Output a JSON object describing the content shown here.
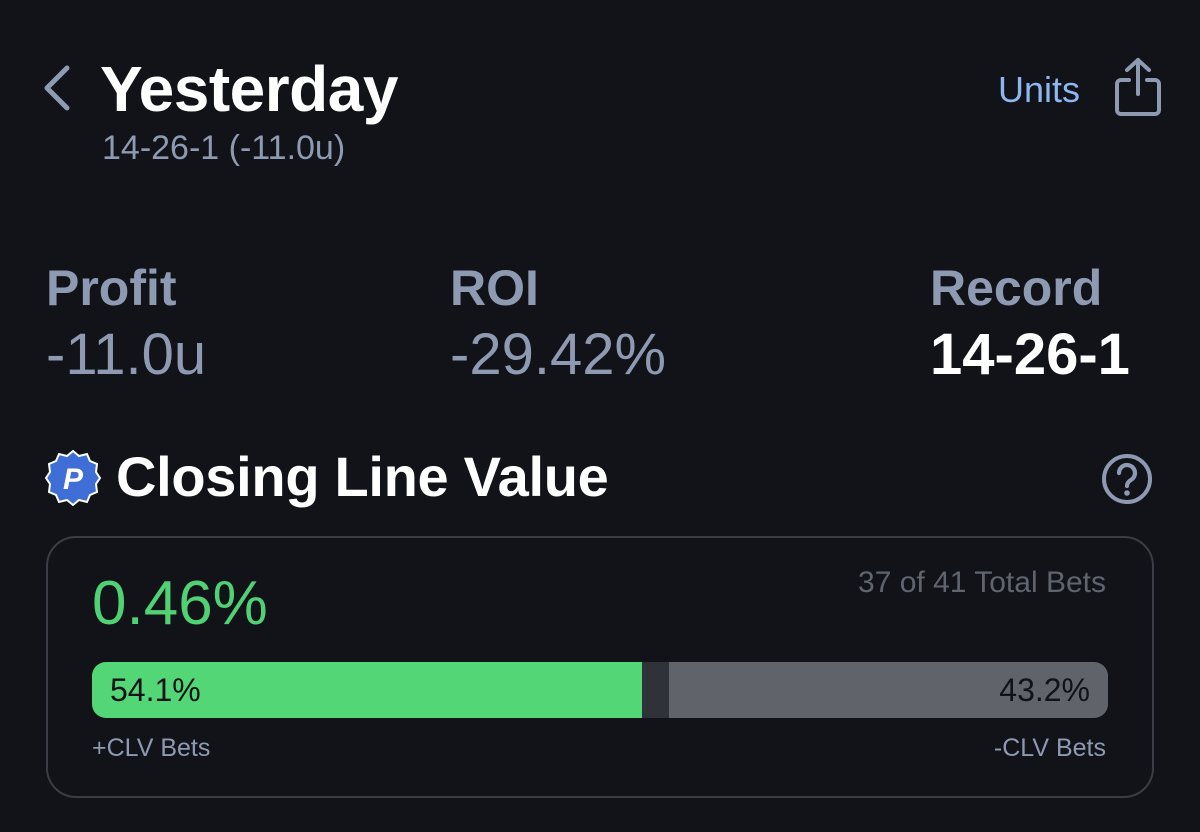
{
  "header": {
    "back_icon": "chevron-left-icon",
    "title": "Yesterday",
    "subtitle": "14-26-1 (-11.0u)",
    "units_label": "Units",
    "share_icon": "share-icon",
    "accent_color": "#8fb6f2"
  },
  "stats": {
    "profit": {
      "label": "Profit",
      "value": "-11.0u"
    },
    "roi": {
      "label": "ROI",
      "value": "-29.42%"
    },
    "record": {
      "label": "Record",
      "value": "14-26-1"
    }
  },
  "clv": {
    "badge_letter": "P",
    "badge_icon": "p-badge-icon",
    "title": "Closing Line Value",
    "help_icon": "question-circle-icon",
    "value": "0.46%",
    "value_color": "#4fd174",
    "total_bets": "37 of 41 Total Bets",
    "positive_pct": 54.1,
    "negative_pct": 43.2,
    "positive_label": "54.1%",
    "negative_label": "43.2%",
    "positive_caption": "+CLV Bets",
    "negative_caption": "-CLV Bets",
    "positive_color": "#53d675",
    "negative_color": "#606369"
  }
}
